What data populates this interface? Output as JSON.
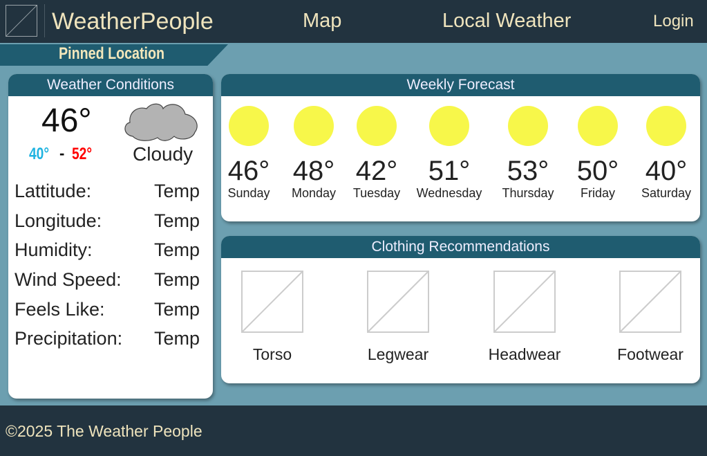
{
  "header": {
    "brand": "WeatherPeople",
    "nav": [
      "Map",
      "Local Weather"
    ],
    "login": "Login"
  },
  "pinned": "Pinned Location",
  "conditions": {
    "title": "Weather Conditions",
    "current": "46°",
    "low": "40°",
    "separator": "-",
    "high": "52°",
    "condition": "Cloudy",
    "icon": "cloud-icon",
    "rows": [
      {
        "label": "Lattitude:",
        "value": "Temp"
      },
      {
        "label": "Longitude:",
        "value": "Temp"
      },
      {
        "label": "Humidity:",
        "value": "Temp"
      },
      {
        "label": "Wind Speed:",
        "value": "Temp"
      },
      {
        "label": "Feels Like:",
        "value": "Temp"
      },
      {
        "label": "Precipitation:",
        "value": "Temp"
      }
    ]
  },
  "forecast": {
    "title": "Weekly Forecast",
    "days": [
      {
        "temp": "46°",
        "day": "Sunday"
      },
      {
        "temp": "48°",
        "day": "Monday"
      },
      {
        "temp": "42°",
        "day": "Tuesday"
      },
      {
        "temp": "51°",
        "day": "Wednesday"
      },
      {
        "temp": "53°",
        "day": "Thursday"
      },
      {
        "temp": "50°",
        "day": "Friday"
      },
      {
        "temp": "40°",
        "day": "Saturday"
      }
    ],
    "icon": "sun-icon"
  },
  "clothing": {
    "title": "Clothing Recommendations",
    "items": [
      "Torso",
      "Legwear",
      "Headwear",
      "Footwear"
    ]
  },
  "footer": "©2025 The Weather People",
  "colors": {
    "header": "#22333f",
    "accent": "#1f5c70",
    "background": "#6c9fb0",
    "brand_text": "#efe4bd",
    "low": "#1fb3e0",
    "high": "#ff0000",
    "sun": "#f7f74a"
  }
}
